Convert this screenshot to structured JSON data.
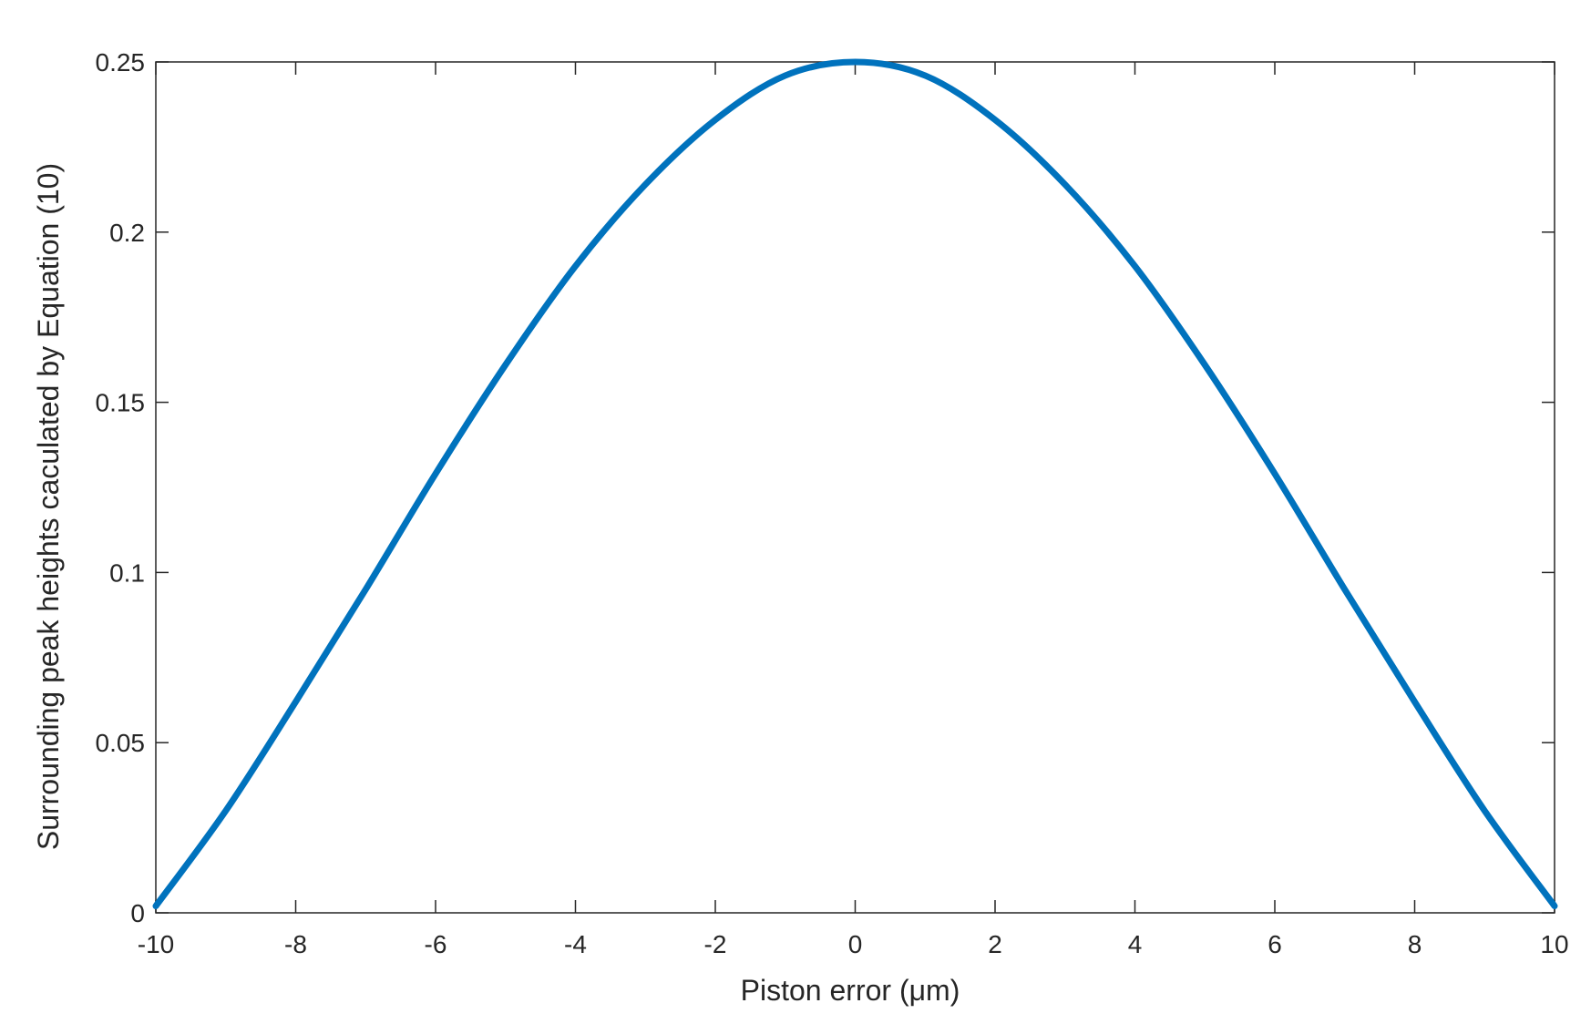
{
  "chart_data": {
    "type": "line",
    "title": "",
    "xlabel": "Piston error (μm)",
    "ylabel": "Surrounding peak heights caculated by Equation (10)",
    "xlim": [
      -10,
      10
    ],
    "ylim": [
      0,
      0.25
    ],
    "xticks": [
      -10,
      -8,
      -6,
      -4,
      -2,
      0,
      2,
      4,
      6,
      8,
      10
    ],
    "xtick_labels": [
      "-10",
      "-8",
      "-6",
      "-4",
      "-2",
      "0",
      "2",
      "4",
      "6",
      "8",
      "10"
    ],
    "yticks": [
      0,
      0.05,
      0.1,
      0.15,
      0.2,
      0.25
    ],
    "ytick_labels": [
      "0",
      "0.05",
      "0.1",
      "0.15",
      "0.2",
      "0.25"
    ],
    "grid": false,
    "series": [
      {
        "color": "#0072BD",
        "x": [
          -10,
          -9,
          -8,
          -7,
          -6,
          -5,
          -4,
          -3,
          -2,
          -1,
          0,
          1,
          2,
          3,
          4,
          5,
          6,
          7,
          8,
          9,
          10
        ],
        "values": [
          0.002,
          0.03,
          0.062,
          0.095,
          0.129,
          0.161,
          0.19,
          0.214,
          0.233,
          0.246,
          0.25,
          0.246,
          0.233,
          0.214,
          0.19,
          0.161,
          0.129,
          0.095,
          0.062,
          0.03,
          0.002
        ]
      }
    ]
  }
}
